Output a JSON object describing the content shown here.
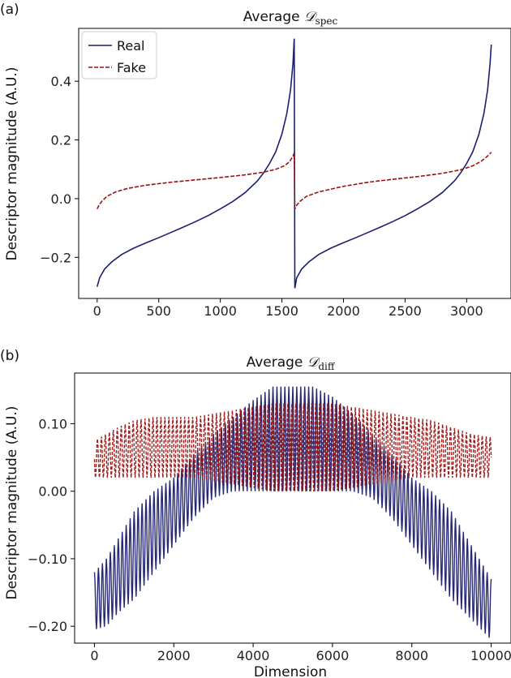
{
  "colors": {
    "real": "#1c1f6e",
    "fake": "#9c1111"
  },
  "panels": [
    {
      "panel_label": "(a)",
      "title_prefix": "Average ",
      "title_symbol": "𝒟",
      "title_subscript": "spec",
      "ylabel": "Descriptor magnitude (A.U.)",
      "xlabel": "",
      "legend": {
        "placement": "upper-left",
        "entries": [
          "Real",
          "Fake"
        ]
      },
      "x_ticks": [
        "0",
        "500",
        "1000",
        "1500",
        "2000",
        "2500",
        "3000"
      ],
      "y_ticks": [
        "−0.2",
        "0.0",
        "0.2",
        "0.4"
      ]
    },
    {
      "panel_label": "(b)",
      "title_prefix": "Average ",
      "title_symbol": "𝒟",
      "title_subscript": "diff",
      "ylabel": "Descriptor magnitude (A.U.)",
      "xlabel": "Dimension",
      "x_ticks": [
        "0",
        "2000",
        "4000",
        "6000",
        "8000",
        "10000"
      ],
      "y_ticks": [
        "−0.20",
        "−0.10",
        "0.00",
        "0.10"
      ]
    }
  ],
  "chart_data": [
    {
      "type": "line",
      "title": "Average 𝒟spec",
      "xlabel": "",
      "ylabel": "Descriptor magnitude (A.U.)",
      "xlim": [
        -150,
        3360
      ],
      "ylim": [
        -0.34,
        0.58
      ],
      "x_ticks": [
        0,
        500,
        1000,
        1500,
        2000,
        2500,
        3000
      ],
      "y_ticks": [
        -0.2,
        0.0,
        0.2,
        0.4
      ],
      "grid": false,
      "legend": "upper-left",
      "series": [
        {
          "name": "Real",
          "style": "solid",
          "x": [
            0,
            20,
            60,
            120,
            200,
            300,
            400,
            500,
            600,
            700,
            800,
            900,
            1000,
            1100,
            1200,
            1300,
            1350,
            1400,
            1450,
            1500,
            1540,
            1570,
            1590,
            1600,
            1605,
            1620,
            1660,
            1720,
            1800,
            1900,
            2000,
            2100,
            2200,
            2300,
            2400,
            2500,
            2600,
            2700,
            2800,
            2900,
            2950,
            3000,
            3050,
            3100,
            3140,
            3170,
            3190,
            3200
          ],
          "values": [
            -0.3,
            -0.27,
            -0.24,
            -0.215,
            -0.19,
            -0.168,
            -0.15,
            -0.133,
            -0.115,
            -0.097,
            -0.078,
            -0.058,
            -0.035,
            -0.01,
            0.02,
            0.06,
            0.087,
            0.12,
            0.16,
            0.22,
            0.29,
            0.37,
            0.46,
            0.545,
            -0.305,
            -0.27,
            -0.24,
            -0.215,
            -0.19,
            -0.168,
            -0.15,
            -0.133,
            -0.115,
            -0.097,
            -0.078,
            -0.058,
            -0.035,
            -0.01,
            0.02,
            0.06,
            0.087,
            0.12,
            0.16,
            0.22,
            0.29,
            0.37,
            0.46,
            0.525
          ]
        },
        {
          "name": "Fake",
          "style": "dashed",
          "x": [
            0,
            15,
            40,
            80,
            150,
            250,
            400,
            600,
            800,
            1000,
            1200,
            1350,
            1450,
            1520,
            1560,
            1590,
            1600,
            1605,
            1620,
            1650,
            1700,
            1800,
            2000,
            2200,
            2400,
            2600,
            2800,
            2950,
            3050,
            3120,
            3170,
            3200
          ],
          "values": [
            -0.035,
            -0.022,
            -0.008,
            0.008,
            0.023,
            0.035,
            0.046,
            0.056,
            0.064,
            0.072,
            0.081,
            0.09,
            0.1,
            0.112,
            0.125,
            0.145,
            0.155,
            -0.035,
            -0.022,
            -0.008,
            0.008,
            0.023,
            0.042,
            0.056,
            0.066,
            0.075,
            0.086,
            0.098,
            0.112,
            0.128,
            0.145,
            0.158
          ]
        }
      ]
    },
    {
      "type": "line",
      "title": "Average 𝒟diff",
      "xlabel": "Dimension",
      "ylabel": "Descriptor magnitude (A.U.)",
      "xlim": [
        -500,
        10500
      ],
      "ylim": [
        -0.225,
        0.175
      ],
      "x_ticks": [
        0,
        2000,
        4000,
        6000,
        8000,
        10000
      ],
      "y_ticks": [
        -0.2,
        -0.1,
        0.0,
        0.1
      ],
      "grid": false,
      "legend": "none",
      "oscillation_period": 100,
      "series": [
        {
          "name": "Real",
          "style": "solid",
          "x": [
            0,
            300,
            600,
            1000,
            1500,
            2000,
            2500,
            3000,
            3500,
            4000,
            4500,
            5000,
            5500,
            6000,
            6500,
            7000,
            7500,
            8000,
            8500,
            9000,
            9500,
            10000
          ],
          "upper": [
            -0.12,
            -0.1,
            -0.07,
            -0.03,
            0.0,
            0.02,
            0.055,
            0.085,
            0.11,
            0.135,
            0.155,
            0.155,
            0.155,
            0.14,
            0.115,
            0.085,
            0.055,
            0.02,
            0.0,
            -0.03,
            -0.08,
            -0.13
          ],
          "lower": [
            -0.205,
            -0.2,
            -0.18,
            -0.16,
            -0.12,
            -0.08,
            -0.04,
            -0.01,
            0.0,
            0.0,
            0.0,
            0.0,
            0.0,
            0.0,
            0.0,
            -0.01,
            -0.04,
            -0.08,
            -0.12,
            -0.16,
            -0.19,
            -0.22
          ]
        },
        {
          "name": "Fake",
          "style": "dashed",
          "x": [
            0,
            300,
            600,
            1000,
            1500,
            2000,
            2500,
            3000,
            3500,
            4000,
            4500,
            5000,
            5500,
            6000,
            6500,
            7000,
            7500,
            8000,
            8500,
            9000,
            9500,
            10000
          ],
          "upper": [
            0.075,
            0.085,
            0.095,
            0.105,
            0.11,
            0.11,
            0.11,
            0.115,
            0.12,
            0.125,
            0.13,
            0.13,
            0.13,
            0.13,
            0.125,
            0.12,
            0.115,
            0.11,
            0.105,
            0.095,
            0.085,
            0.08
          ],
          "lower": [
            0.02,
            0.02,
            0.02,
            0.02,
            0.02,
            0.02,
            0.02,
            0.015,
            0.01,
            0.005,
            0.0,
            0.0,
            0.0,
            0.0,
            0.005,
            0.01,
            0.015,
            0.02,
            0.02,
            0.02,
            0.02,
            0.02
          ]
        }
      ]
    }
  ]
}
